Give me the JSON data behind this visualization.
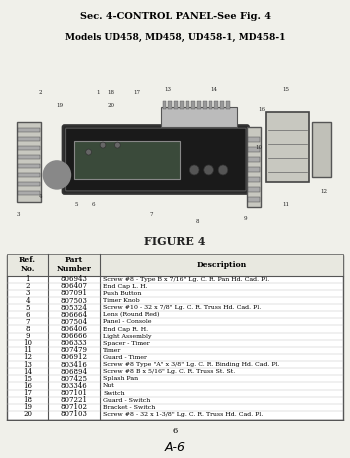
{
  "title_line1": "Sec. 4-CONTROL PANEL-See Fig. 4",
  "title_line2": "Models UD458, MD458, UD458-1, MD458-1",
  "figure_label": "FIGURE 4",
  "page_number": "6",
  "page_code": "A-6",
  "bg_color": "#e8e8e0",
  "table_header": [
    "Ref.\nNo.",
    "Part\nNumber",
    "Description"
  ],
  "table_data": [
    [
      "1",
      "806943",
      "Screw #8 - Type B x 7/16\" Lg. C. R. Pan Hd. Cad. Pl."
    ],
    [
      "2",
      "806407",
      "End Cap L. H."
    ],
    [
      "3",
      "807091",
      "Push Button"
    ],
    [
      "4",
      "807503",
      "Timer Knob"
    ],
    [
      "5",
      "805324",
      "Screw #10 - 32 x 7/8\" Lg. C. R. Truss Hd. Cad. Pl."
    ],
    [
      "6",
      "806664",
      "Lens (Round Red)"
    ],
    [
      "7",
      "807504",
      "Panel - Console"
    ],
    [
      "8",
      "806406",
      "End Cap R. H."
    ],
    [
      "9",
      "806666",
      "Light Assembly"
    ],
    [
      "10",
      "806333",
      "Spacer - Timer"
    ],
    [
      "11",
      "807479",
      "Timer"
    ],
    [
      "12",
      "806912",
      "Guard - Timer"
    ],
    [
      "13",
      "803416",
      "Screw #8 Type \"A\" x 3/8\" Lg. C. R. Binding Hd. Cad. Pl."
    ],
    [
      "14",
      "806894",
      "Screw #8 B x 5/16\" Lg. C. R. Truss St. St."
    ],
    [
      "15",
      "807425",
      "Splash Pan"
    ],
    [
      "16",
      "803346",
      "Nut"
    ],
    [
      "17",
      "807101",
      "Switch"
    ],
    [
      "18",
      "807221",
      "Guard - Switch"
    ],
    [
      "19",
      "807102",
      "Bracket - Switch"
    ],
    [
      "20",
      "807103",
      "Screw #8 - 32 x 1-3/8\" Lg. C. R. Truss Hd. Cad. Pl."
    ]
  ]
}
